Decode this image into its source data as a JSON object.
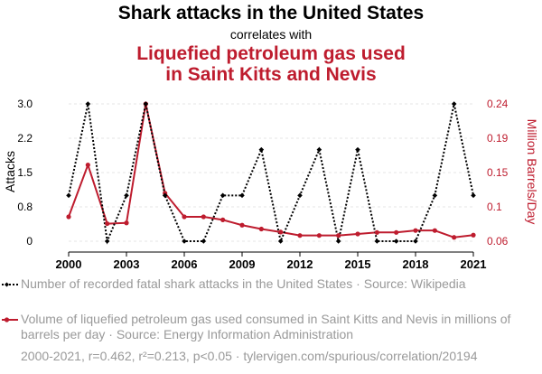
{
  "title": {
    "line1": "Shark attacks in the United States",
    "line2": "correlates with",
    "line3a": "Liquefied petroleum gas used",
    "line3b": "in Saint Kitts and Nevis"
  },
  "colors": {
    "series1": "#000000",
    "series2": "#be1c2e",
    "grid": "#e6e6e6",
    "muted": "#999999"
  },
  "chart_data": {
    "type": "line",
    "x": [
      2000,
      2001,
      2002,
      2003,
      2004,
      2005,
      2006,
      2007,
      2008,
      2009,
      2010,
      2011,
      2012,
      2013,
      2014,
      2015,
      2016,
      2017,
      2018,
      2019,
      2020,
      2021
    ],
    "xticks": [
      "2000",
      "2003",
      "2006",
      "2009",
      "2012",
      "2015",
      "2018",
      "2021"
    ],
    "series": [
      {
        "name": "Number of recorded fatal shark attacks in the United States · Source: Wikipedia",
        "axis": "left",
        "style": "dotted",
        "values": [
          1,
          3,
          0,
          1,
          3,
          1,
          0,
          0,
          1,
          1,
          2,
          0,
          1,
          2,
          0,
          2,
          0,
          0,
          0,
          1,
          3,
          1
        ]
      },
      {
        "name": "Volume of liquefied petroleum gas used consumed in Saint Kitts and Nevis in millions of barrels per day · Source: Energy Information Administration",
        "axis": "right",
        "style": "solid",
        "values": [
          0.092,
          0.16,
          0.083,
          0.084,
          0.24,
          0.123,
          0.092,
          0.092,
          0.088,
          0.081,
          0.076,
          0.072,
          0.0675,
          0.0675,
          0.0675,
          0.0695,
          0.0715,
          0.0715,
          0.074,
          0.074,
          0.065,
          0.068
        ]
      }
    ],
    "ylabel_left": "Attacks",
    "ylabel_right": "Million Barrels/Day",
    "left_ticks": [
      "3.0",
      "2.2",
      "1.5",
      "0.8",
      "0"
    ],
    "left_tick_values": [
      3,
      2.25,
      1.5,
      0.75,
      0
    ],
    "ylim_left": [
      0,
      3
    ],
    "right_ticks": [
      "0.24",
      "0.19",
      "0.15",
      "0.1",
      "0.06"
    ],
    "right_tick_values": [
      0.24,
      0.195,
      0.15,
      0.105,
      0.06
    ],
    "ylim_right": [
      0.06,
      0.24
    ],
    "grid": true
  },
  "footer": "2000-2021, r=0.462, r²=0.213, p<0.05 · tylervigen.com/spurious/correlation/20194"
}
